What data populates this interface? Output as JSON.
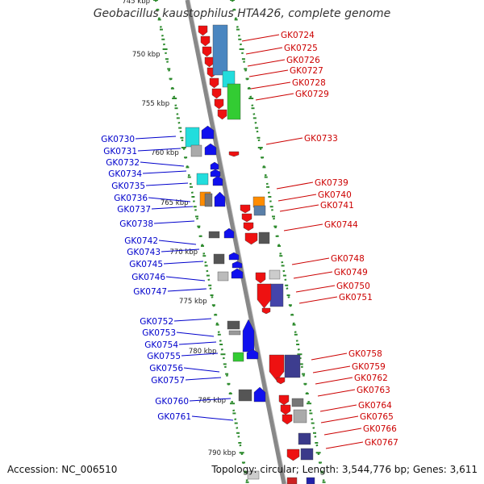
{
  "title": "Geobacillus kaustophilus HTA426, complete genome",
  "accession": "Accession: NC_006510",
  "topology": "Topology: circular; Length: 3,544,776 bp; Genes: 3,611",
  "colors": {
    "plus_strand_label": "#0000cc",
    "minus_strand_label": "#cc0000",
    "ruler": "#2e8b2e",
    "backbone": "#888888"
  },
  "ruler_ticks": [
    "745 kbp",
    "750 kbp",
    "755 kbp",
    "760 kbp",
    "765 kbp",
    "770 kbp",
    "775 kbp",
    "780 kbp",
    "785 kbp",
    "790 kbp"
  ],
  "minus_labels": [
    "GK0724",
    "GK0725",
    "GK0726",
    "GK0727",
    "GK0728",
    "GK0729",
    "GK0733",
    "GK0739",
    "GK0740",
    "GK0741",
    "GK0744",
    "GK0748",
    "GK0749",
    "GK0750",
    "GK0751",
    "GK0758",
    "GK0759",
    "GK0762",
    "GK0763",
    "GK0764",
    "GK0765",
    "GK0766",
    "GK0767"
  ],
  "plus_labels": [
    "GK0730",
    "GK0731",
    "GK0732",
    "GK0734",
    "GK0735",
    "GK0736",
    "GK0737",
    "GK0738",
    "GK0742",
    "GK0743",
    "GK0745",
    "GK0746",
    "GK0747",
    "GK0752",
    "GK0753",
    "GK0754",
    "GK0755",
    "GK0756",
    "GK0757",
    "GK0760",
    "GK0761"
  ]
}
